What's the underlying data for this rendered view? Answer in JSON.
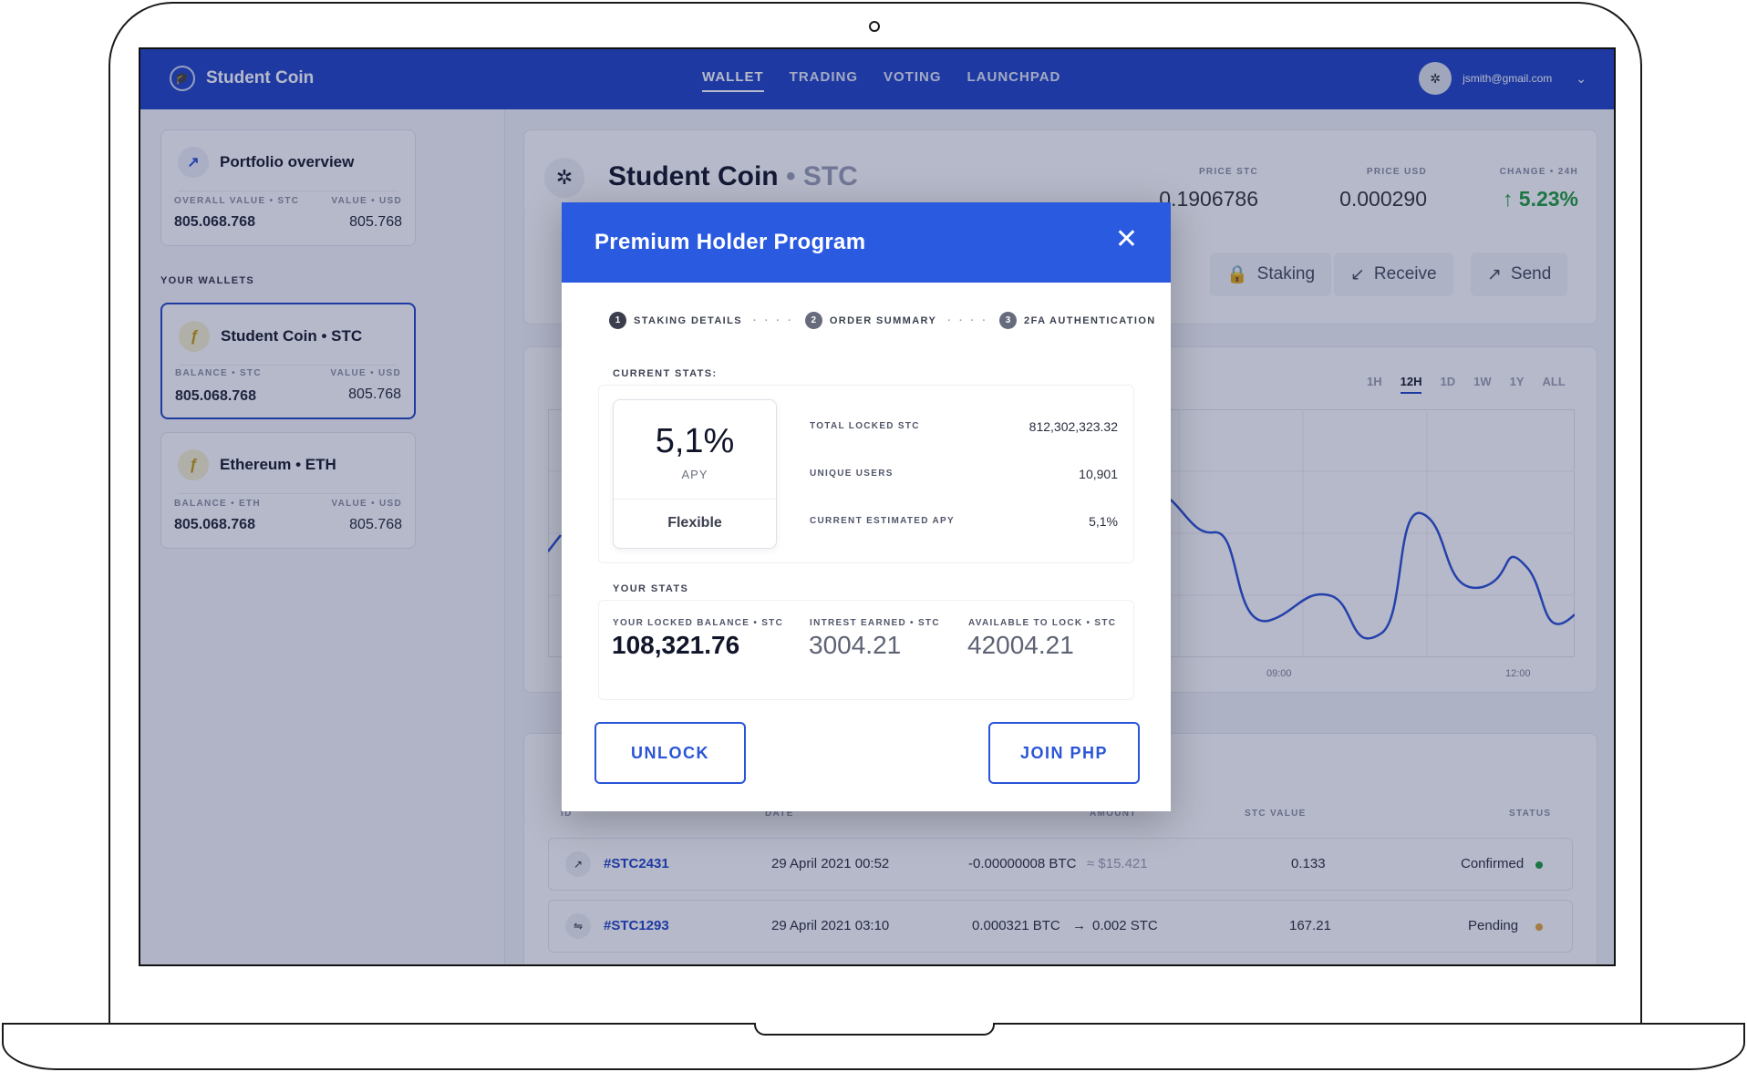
{
  "app": {
    "name": "Student Coin"
  },
  "nav": {
    "items": [
      "WALLET",
      "TRADING",
      "VOTING",
      "LAUNCHPAD"
    ],
    "active": "WALLET"
  },
  "user": {
    "email": "jsmith@gmail.com"
  },
  "portfolio": {
    "title": "Portfolio overview",
    "overall_label": "OVERALL VALUE • STC",
    "overall_value": "805.068.768",
    "usd_label": "VALUE • USD",
    "usd_value": "805.768"
  },
  "wallets_heading": "YOUR WALLETS",
  "wallets": [
    {
      "name": "Student Coin • STC",
      "balance_label": "BALANCE • STC",
      "balance": "805.068.768",
      "usd_label": "VALUE • USD",
      "usd": "805.768"
    },
    {
      "name": "Ethereum • ETH",
      "balance_label": "BALANCE • ETH",
      "balance": "805.068.768",
      "usd_label": "VALUE • USD",
      "usd": "805.768"
    }
  ],
  "coin": {
    "name": "Student Coin",
    "symbol": "STC",
    "price_stc_label": "PRICE STC",
    "price_stc": "0.1906786",
    "price_usd_label": "PRICE USD",
    "price_usd": "0.000290",
    "change_label": "CHANGE • 24H",
    "change": "5.23%"
  },
  "actions": {
    "staking": "Staking",
    "receive": "Receive",
    "send": "Send"
  },
  "chart": {
    "ranges": [
      "1H",
      "12H",
      "1D",
      "1W",
      "1Y",
      "ALL"
    ],
    "active_range": "12H",
    "x_ticks": [
      "09:00",
      "12:00"
    ]
  },
  "transactions": {
    "headers": [
      "ID",
      "DATE",
      "AMOUNT",
      "STC VALUE",
      "STATUS"
    ],
    "rows": [
      {
        "id": "#STC2431",
        "date": "29 April 2021 00:52",
        "amount": "-0.00000008 BTC",
        "amount_extra": "≈ $15.421",
        "value": "0.133",
        "status": "Confirmed"
      },
      {
        "id": "#STC1293",
        "date": "29 April 2021 03:10",
        "amount": "0.000321 BTC",
        "amount_extra": "0.002 STC",
        "value": "167.21",
        "status": "Pending"
      }
    ]
  },
  "modal": {
    "title": "Premium Holder Program",
    "steps": [
      "STAKING DETAILS",
      "ORDER SUMMARY",
      "2FA AUTHENTICATION"
    ],
    "current_stats_label": "CURRENT STATS:",
    "apy_value": "5,1%",
    "apy_label": "APY",
    "apy_mode": "Flexible",
    "stats": [
      {
        "label": "TOTAL LOCKED STC",
        "value": "812,302,323.32"
      },
      {
        "label": "UNIQUE USERS",
        "value": "10,901"
      },
      {
        "label": "CURRENT ESTIMATED APY",
        "value": "5,1%"
      }
    ],
    "your_stats_label": "YOUR STATS",
    "your_stats": [
      {
        "label": "YOUR LOCKED BALANCE • STC",
        "value": "108,321.76"
      },
      {
        "label": "INTREST EARNED • STC",
        "value": "3004.21"
      },
      {
        "label": "AVAILABLE TO LOCK • STC",
        "value": "42004.21"
      }
    ],
    "unlock_label": "UNLOCK",
    "join_label": "JOIN PHP"
  },
  "colors": {
    "brand": "#1f45c6",
    "modal_header": "#2a5ae0",
    "positive": "#1e9c3a",
    "pending": "#e7a43c"
  }
}
